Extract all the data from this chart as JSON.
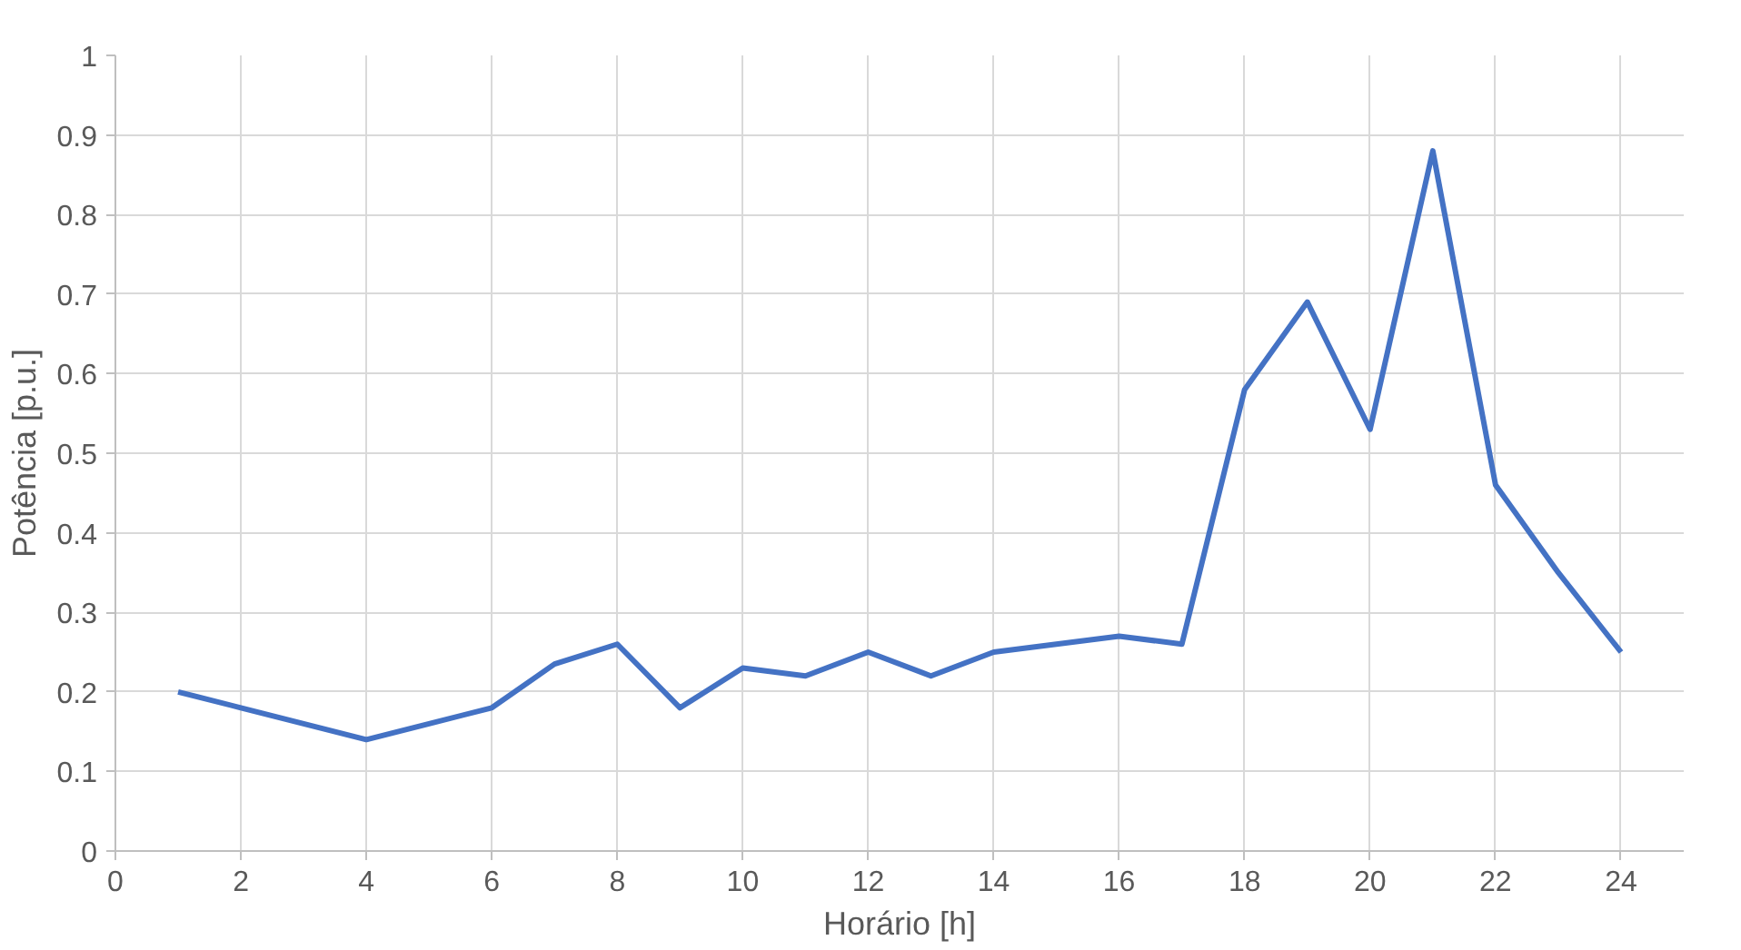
{
  "chart_data": {
    "type": "line",
    "xlabel": "Horário [h]",
    "ylabel": "Potência [p.u.]",
    "x": [
      1,
      2,
      3,
      4,
      5,
      6,
      7,
      8,
      9,
      10,
      11,
      12,
      13,
      14,
      15,
      16,
      17,
      18,
      19,
      20,
      21,
      22,
      23,
      24
    ],
    "series": [
      {
        "color": "#4472c4",
        "values": [
          0.2,
          0.18,
          0.16,
          0.14,
          0.16,
          0.18,
          0.235,
          0.26,
          0.18,
          0.23,
          0.22,
          0.25,
          0.22,
          0.25,
          0.26,
          0.27,
          0.26,
          0.58,
          0.69,
          0.53,
          0.88,
          0.46,
          0.35,
          0.25
        ]
      }
    ],
    "xlim": [
      0,
      25
    ],
    "xticks": [
      0,
      2,
      4,
      6,
      8,
      10,
      12,
      14,
      16,
      18,
      20,
      22,
      24
    ],
    "ylim": [
      0,
      1
    ],
    "yticks": [
      0,
      0.1,
      0.2,
      0.3,
      0.4,
      0.5,
      0.6,
      0.7,
      0.8,
      0.9,
      1
    ],
    "grid": true,
    "marker": "none",
    "line_style": "solid"
  }
}
